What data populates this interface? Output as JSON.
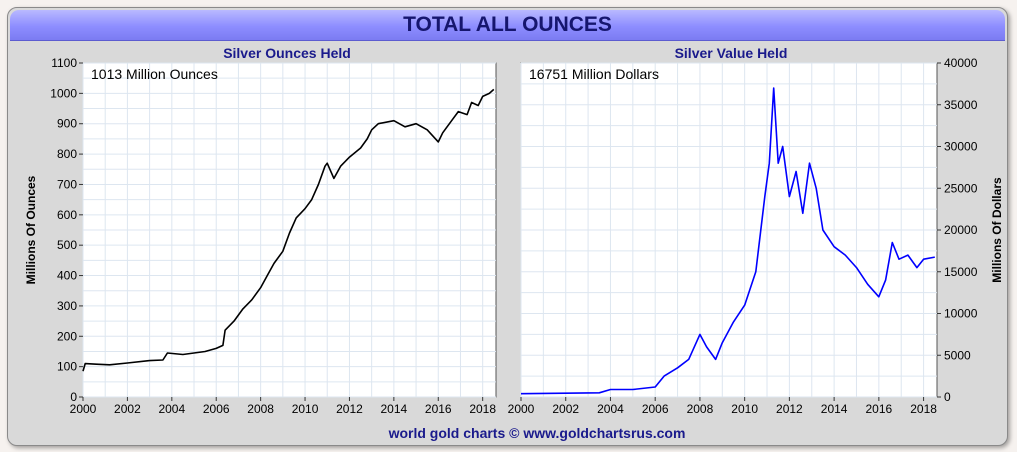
{
  "title": "TOTAL ALL OUNCES",
  "footer": "world gold charts © www.goldchartsrus.com",
  "chart_data": [
    {
      "type": "line",
      "title": "Silver Ounces Held",
      "annotation": "1013 Million Ounces",
      "ylabel": "Millions Of Ounces",
      "y_axis_side": "left",
      "line_color": "#000000",
      "grid": true,
      "xlim": [
        2000,
        2018.6
      ],
      "ylim": [
        0,
        1100
      ],
      "x_ticks": [
        "2000",
        "2002",
        "2004",
        "2006",
        "2008",
        "2010",
        "2012",
        "2014",
        "2016",
        "2018"
      ],
      "y_ticks": [
        "0",
        "100",
        "200",
        "300",
        "400",
        "500",
        "600",
        "700",
        "800",
        "900",
        "1000",
        "1100"
      ],
      "series": [
        {
          "x": [
            2000,
            2000.1,
            2000.6,
            2001.2,
            2002.0,
            2003.0,
            2003.6,
            2003.8,
            2004.5,
            2005.0,
            2005.5,
            2006.0,
            2006.3,
            2006.4,
            2006.8,
            2007.2,
            2007.6,
            2008.0,
            2008.3,
            2008.6,
            2009.0,
            2009.3,
            2009.6,
            2010.0,
            2010.3,
            2010.6,
            2010.9,
            2011.0,
            2011.3,
            2011.6,
            2012.0,
            2012.5,
            2012.8,
            2013.0,
            2013.3,
            2014.0,
            2014.5,
            2015.0,
            2015.5,
            2016.0,
            2016.2,
            2016.6,
            2016.9,
            2017.3,
            2017.5,
            2017.8,
            2018.0,
            2018.3,
            2018.5
          ],
          "y": [
            85,
            110,
            108,
            106,
            112,
            120,
            122,
            145,
            140,
            145,
            150,
            160,
            170,
            220,
            250,
            290,
            320,
            360,
            400,
            440,
            480,
            540,
            590,
            620,
            650,
            700,
            760,
            770,
            720,
            760,
            790,
            820,
            850,
            880,
            900,
            910,
            890,
            900,
            880,
            840,
            870,
            910,
            940,
            930,
            970,
            960,
            990,
            1000,
            1013
          ]
        }
      ]
    },
    {
      "type": "line",
      "title": "Silver Value Held",
      "annotation": "16751 Million Dollars",
      "ylabel": "Millions Of Dollars",
      "y_axis_side": "right",
      "line_color": "#0000ff",
      "grid": true,
      "xlim": [
        2000,
        2018.6
      ],
      "ylim": [
        0,
        40000
      ],
      "x_ticks": [
        "2000",
        "2002",
        "2004",
        "2006",
        "2008",
        "2010",
        "2012",
        "2014",
        "2016",
        "2018"
      ],
      "y_ticks": [
        "0",
        "5000",
        "10000",
        "15000",
        "20000",
        "25000",
        "30000",
        "35000",
        "40000"
      ],
      "series": [
        {
          "x": [
            2000,
            2002,
            2003.5,
            2004.0,
            2005.0,
            2006.0,
            2006.4,
            2007.0,
            2007.5,
            2008.0,
            2008.3,
            2008.7,
            2009.0,
            2009.5,
            2010.0,
            2010.5,
            2010.9,
            2011.1,
            2011.3,
            2011.5,
            2011.7,
            2012.0,
            2012.3,
            2012.6,
            2012.9,
            2013.2,
            2013.5,
            2014.0,
            2014.5,
            2015.0,
            2015.5,
            2016.0,
            2016.3,
            2016.6,
            2016.9,
            2017.3,
            2017.7,
            2018.0,
            2018.5
          ],
          "y": [
            400,
            450,
            500,
            900,
            900,
            1200,
            2500,
            3500,
            4500,
            7500,
            6000,
            4500,
            6500,
            9000,
            11000,
            15000,
            24000,
            28000,
            37000,
            28000,
            30000,
            24000,
            27000,
            22000,
            28000,
            25000,
            20000,
            18000,
            17000,
            15500,
            13500,
            12000,
            14000,
            18500,
            16500,
            17000,
            15500,
            16500,
            16751
          ]
        }
      ]
    }
  ]
}
